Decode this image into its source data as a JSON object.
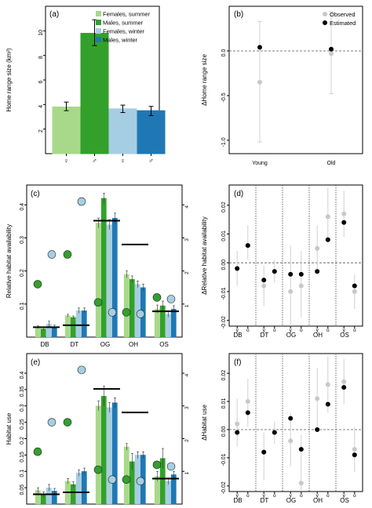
{
  "colors": {
    "females_summer": "#a8d98a",
    "males_summer": "#33a02c",
    "females_winter": "#a6cee3",
    "males_winter": "#1f78b4",
    "observed": "#c8c8c8",
    "estimated": "#000000",
    "whisker_obs": "#d0d0d0"
  },
  "chart_data": [
    {
      "panel": "a",
      "panel_label": "(a)",
      "type": "bar",
      "ylabel": "Home range size (km²)",
      "ylim": [
        0,
        12
      ],
      "yticks": [
        "2",
        "4",
        "6",
        "8",
        "10"
      ],
      "categories": [
        "♀",
        "♂",
        "♀",
        "♂"
      ],
      "legend": [
        "Females, summer",
        "Males, summer",
        "Females, winter",
        "Males, winter"
      ],
      "legend_position": "top-right",
      "values": [
        3.8,
        9.8,
        3.65,
        3.5
      ],
      "err_low": [
        3.5,
        8.8,
        3.35,
        3.1
      ],
      "err_high": [
        4.2,
        10.9,
        3.95,
        3.85
      ]
    },
    {
      "panel": "b",
      "panel_label": "(b)",
      "type": "scatter",
      "ylabel": "ΔHome range size",
      "ylim": [
        -1.15,
        0.5
      ],
      "yticks": [
        "0.0",
        "-0.5",
        "-1.0"
      ],
      "categories": [
        "Young",
        "Old"
      ],
      "legend": [
        "Observed",
        "Estimated"
      ],
      "legend_position": "top-right",
      "observed": [
        -0.35,
        -0.03
      ],
      "observed_low": [
        -1.02,
        -0.48
      ],
      "observed_high": [
        0.33,
        0.44
      ],
      "estimated": [
        0.04,
        0.02
      ]
    },
    {
      "panel": "c",
      "panel_label": "(c)",
      "type": "bar",
      "ylabel": "Relative habitat availability",
      "ylim": [
        0,
        0.46
      ],
      "yticks": [
        "0.1",
        "0.2",
        "0.3",
        "0.4"
      ],
      "y2ticks": [
        "1",
        "2",
        "3",
        "4"
      ],
      "categories": [
        "DB",
        "DT",
        "OG",
        "OH",
        "OS"
      ],
      "series": [
        {
          "name": "Females, summer",
          "values": [
            0.03,
            0.065,
            0.345,
            0.19,
            0.085
          ],
          "err": [
            0.004,
            0.004,
            0.015,
            0.01,
            0.012
          ]
        },
        {
          "name": "Males, summer",
          "values": [
            0.025,
            0.06,
            0.42,
            0.175,
            0.095
          ],
          "err": [
            0.004,
            0.004,
            0.015,
            0.01,
            0.014
          ]
        },
        {
          "name": "Females, winter",
          "values": [
            0.04,
            0.08,
            0.34,
            0.16,
            0.07
          ],
          "err": [
            0.008,
            0.008,
            0.015,
            0.01,
            0.01
          ]
        },
        {
          "name": "Males, winter",
          "values": [
            0.03,
            0.08,
            0.36,
            0.15,
            0.085
          ],
          "err": [
            0.006,
            0.008,
            0.015,
            0.01,
            0.01
          ]
        }
      ],
      "reference_lines": [
        0.03,
        0.036,
        0.352,
        0.28,
        0.078
      ],
      "circles": [
        {
          "category": "DB",
          "color": "green",
          "value": 0.16
        },
        {
          "category": "DB",
          "color": "blue",
          "value": 0.25
        },
        {
          "category": "DT",
          "color": "green",
          "value": 0.25
        },
        {
          "category": "DT",
          "color": "blue",
          "value": 0.41
        },
        {
          "category": "OG",
          "color": "green",
          "value": 0.105
        },
        {
          "category": "OG",
          "color": "blue",
          "value": 0.075
        },
        {
          "category": "OH",
          "color": "green",
          "value": 0.075
        },
        {
          "category": "OH",
          "color": "blue",
          "value": 0.07
        },
        {
          "category": "OS",
          "color": "green",
          "value": 0.12
        },
        {
          "category": "OS",
          "color": "blue",
          "value": 0.115
        }
      ]
    },
    {
      "panel": "d",
      "panel_label": "(d)",
      "type": "scatter",
      "ylabel": "ΔRelative habitat availability",
      "ylim": [
        -0.022,
        0.027
      ],
      "yticks": [
        "0.02",
        "0.01",
        "0.00",
        "-0.01",
        "-0.02"
      ],
      "categories": [
        "DB",
        "DT",
        "OG",
        "OH",
        "OS"
      ],
      "subcategories": [
        "y",
        "o"
      ],
      "observed": [
        -0.002,
        0.006,
        -0.008,
        -0.003,
        -0.01,
        -0.008,
        0.005,
        0.016,
        0.017,
        -0.01
      ],
      "observed_low": [
        -0.008,
        0.001,
        -0.015,
        -0.007,
        -0.022,
        -0.019,
        -0.003,
        0.007,
        0.009,
        -0.016
      ],
      "observed_high": [
        0.004,
        0.013,
        -0.001,
        0.001,
        0.006,
        0.004,
        0.013,
        0.026,
        0.025,
        -0.004
      ],
      "estimated": [
        -0.002,
        0.006,
        -0.006,
        -0.003,
        -0.004,
        -0.004,
        -0.003,
        0.008,
        0.014,
        -0.008
      ]
    },
    {
      "panel": "e",
      "panel_label": "(e)",
      "type": "bar",
      "ylabel": "Habitat use",
      "ylim": [
        0,
        0.46
      ],
      "yticks": [
        "0.05",
        "0.1",
        "0.15",
        "0.2",
        "0.25",
        "0.3",
        "0.35",
        "0.4"
      ],
      "y2ticks": [
        "1",
        "2",
        "3",
        "4"
      ],
      "categories": [
        "DB",
        "DT",
        "OG",
        "OH",
        "OS"
      ],
      "series": [
        {
          "name": "Females, summer",
          "values": [
            0.042,
            0.07,
            0.3,
            0.175,
            0.085
          ],
          "err": [
            0.008,
            0.008,
            0.015,
            0.01,
            0.015
          ]
        },
        {
          "name": "Males, summer",
          "values": [
            0.03,
            0.06,
            0.33,
            0.13,
            0.14
          ],
          "err": [
            0.008,
            0.008,
            0.03,
            0.025,
            0.03
          ]
        },
        {
          "name": "Females, winter",
          "values": [
            0.05,
            0.095,
            0.295,
            0.15,
            0.07
          ],
          "err": [
            0.01,
            0.01,
            0.015,
            0.01,
            0.01
          ]
        },
        {
          "name": "Males, winter",
          "values": [
            0.04,
            0.1,
            0.31,
            0.15,
            0.09
          ],
          "err": [
            0.008,
            0.01,
            0.015,
            0.01,
            0.01
          ]
        }
      ],
      "reference_lines": [
        0.03,
        0.036,
        0.352,
        0.28,
        0.078
      ],
      "circles": [
        {
          "category": "DB",
          "color": "green",
          "value": 0.16
        },
        {
          "category": "DB",
          "color": "blue",
          "value": 0.25
        },
        {
          "category": "DT",
          "color": "green",
          "value": 0.25
        },
        {
          "category": "DT",
          "color": "blue",
          "value": 0.41
        },
        {
          "category": "OG",
          "color": "green",
          "value": 0.105
        },
        {
          "category": "OG",
          "color": "blue",
          "value": 0.075
        },
        {
          "category": "OH",
          "color": "green",
          "value": 0.075
        },
        {
          "category": "OH",
          "color": "blue",
          "value": 0.07
        },
        {
          "category": "OS",
          "color": "green",
          "value": 0.12
        },
        {
          "category": "OS",
          "color": "blue",
          "value": 0.115
        }
      ]
    },
    {
      "panel": "f",
      "panel_label": "(f)",
      "type": "scatter",
      "ylabel": "ΔHabitat use",
      "ylim": [
        -0.022,
        0.027
      ],
      "yticks": [
        "0.02",
        "0.01",
        "0.00",
        "-0.01",
        "-0.02"
      ],
      "categories": [
        "DB",
        "DT",
        "OG",
        "OH",
        "OS"
      ],
      "subcategories": [
        "y",
        "o"
      ],
      "observed": [
        0.002,
        0.01,
        -0.008,
        -0.001,
        -0.004,
        -0.019,
        0.011,
        0.016,
        0.017,
        -0.007
      ],
      "observed_low": [
        -0.006,
        0.001,
        -0.018,
        -0.005,
        -0.013,
        -0.022,
        0.001,
        0.006,
        0.009,
        -0.015
      ],
      "observed_high": [
        0.011,
        0.018,
        -0.001,
        0.003,
        0.006,
        -0.002,
        0.022,
        0.026,
        0.025,
        0.001
      ],
      "estimated": [
        -0.001,
        0.006,
        -0.008,
        -0.001,
        0.004,
        -0.007,
        0.0,
        0.009,
        0.015,
        -0.009
      ]
    }
  ]
}
